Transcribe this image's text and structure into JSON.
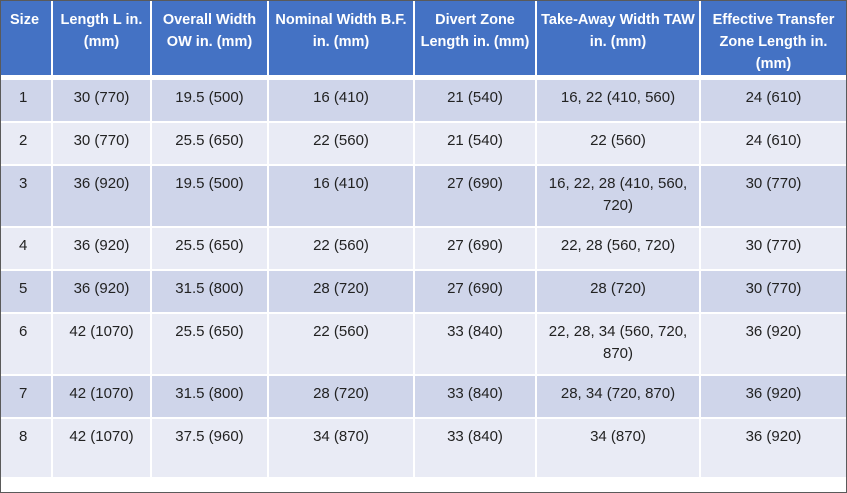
{
  "table": {
    "headers": [
      "Size",
      "Length L in. (mm)",
      "Overall Width OW in. (mm)",
      "Nominal Width B.F. in. (mm)",
      "Divert Zone Length in. (mm)",
      "Take-Away Width TAW in. (mm)",
      "Effective Transfer Zone Length in. (mm)"
    ],
    "rows": [
      [
        "1",
        "30 (770)",
        "19.5 (500)",
        "16 (410)",
        "21 (540)",
        "16, 22 (410, 560)",
        "24 (610)"
      ],
      [
        "2",
        "30 (770)",
        "25.5 (650)",
        "22 (560)",
        "21 (540)",
        "22 (560)",
        "24 (610)"
      ],
      [
        "3",
        "36 (920)",
        "19.5 (500)",
        "16 (410)",
        "27 (690)",
        "16, 22, 28 (410, 560, 720)",
        "30 (770)"
      ],
      [
        "4",
        "36 (920)",
        "25.5 (650)",
        "22 (560)",
        "27 (690)",
        "22, 28 (560, 720)",
        "30 (770)"
      ],
      [
        "5",
        "36 (920)",
        "31.5 (800)",
        "28 (720)",
        "27 (690)",
        "28 (720)",
        "30 (770)"
      ],
      [
        "6",
        "42 (1070)",
        "25.5 (650)",
        "22 (560)",
        "33 (840)",
        "22, 28, 34 (560, 720, 870)",
        "36 (920)"
      ],
      [
        "7",
        "42 (1070)",
        "31.5 (800)",
        "28 (720)",
        "33 (840)",
        "28, 34 (720, 870)",
        "36 (920)"
      ],
      [
        "8",
        "42 (1070)",
        "37.5 (960)",
        "34 (870)",
        "33 (840)",
        "34 (870)",
        "36 (920)"
      ]
    ]
  },
  "colors": {
    "header_bg": "#4472c4",
    "row_odd_bg": "#cfd5ea",
    "row_even_bg": "#e9ebf5"
  }
}
